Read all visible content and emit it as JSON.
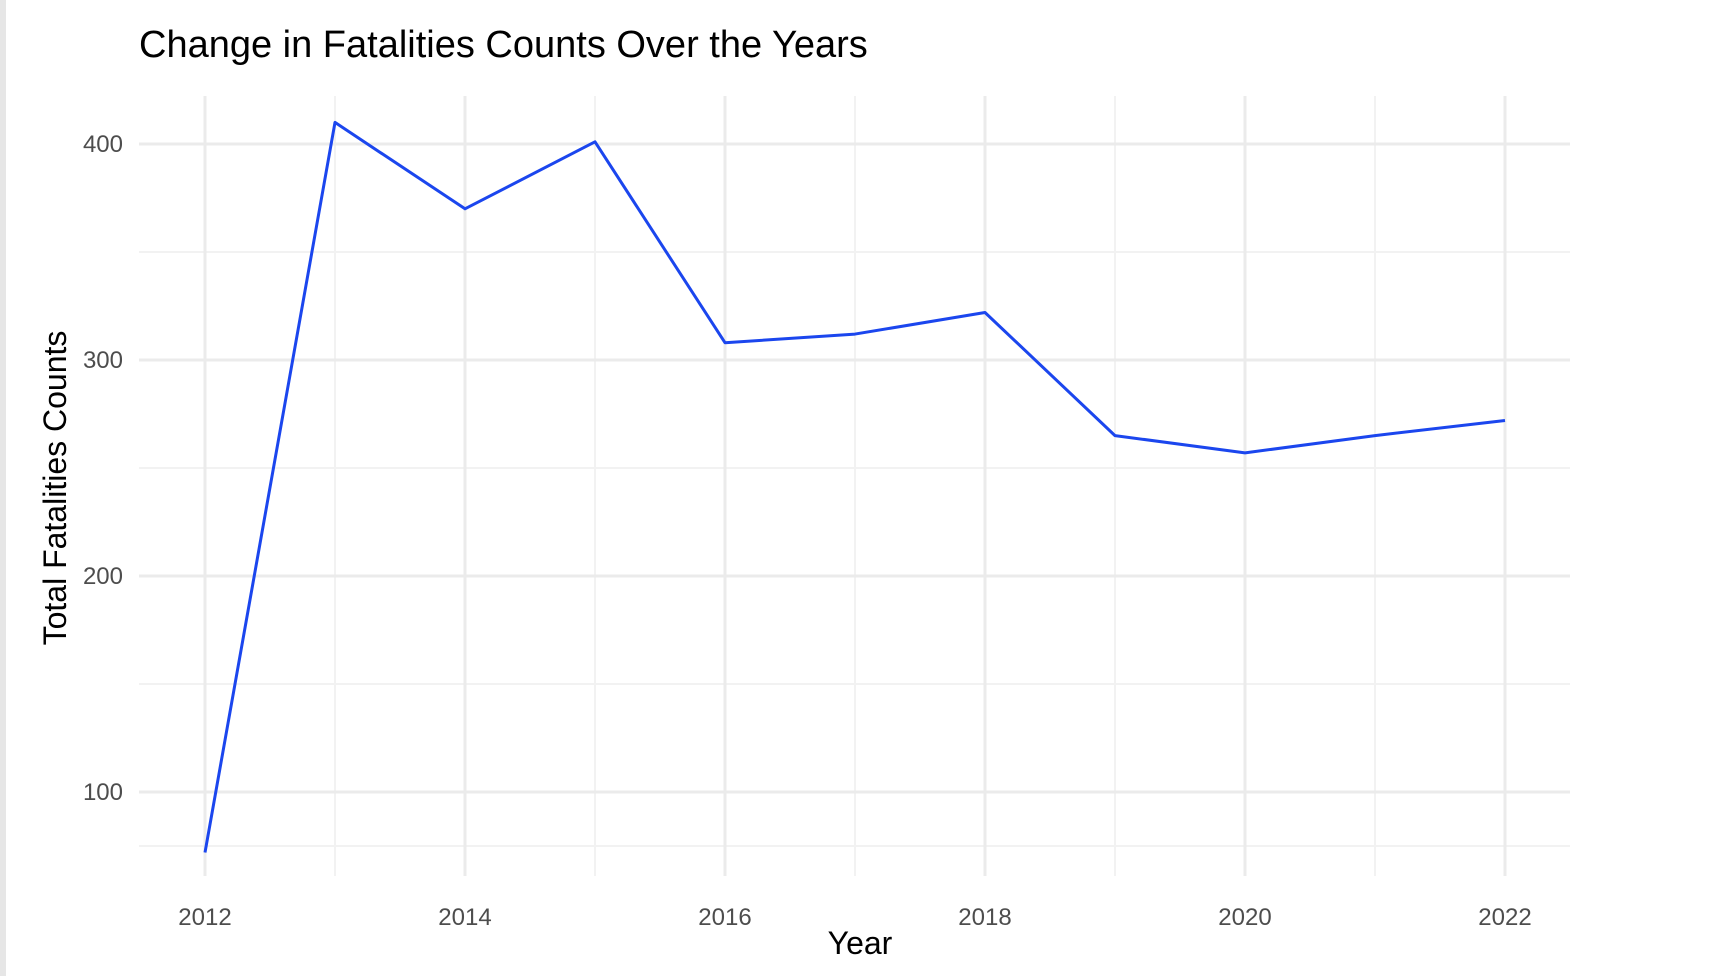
{
  "chart_data": {
    "type": "line",
    "title": "Change in Fatalities Counts Over the Years",
    "xlabel": "Year",
    "ylabel": "Total Fatalities Counts",
    "x": [
      2012,
      2013,
      2014,
      2015,
      2016,
      2017,
      2018,
      2019,
      2020,
      2021,
      2022
    ],
    "series": [
      {
        "name": "",
        "values": [
          72,
          410,
          370,
          401,
          308,
          312,
          322,
          265,
          257,
          265,
          272
        ]
      }
    ],
    "xlim": [
      2011.5,
      2022.5
    ],
    "ylim": [
      55,
      420
    ],
    "x_ticks": [
      "2012",
      "2014",
      "2016",
      "2018",
      "2020",
      "2022"
    ],
    "y_ticks": [
      "100",
      "200",
      "300",
      "400"
    ],
    "grid": true,
    "legend": "none",
    "line_color": "#1b46ee"
  }
}
